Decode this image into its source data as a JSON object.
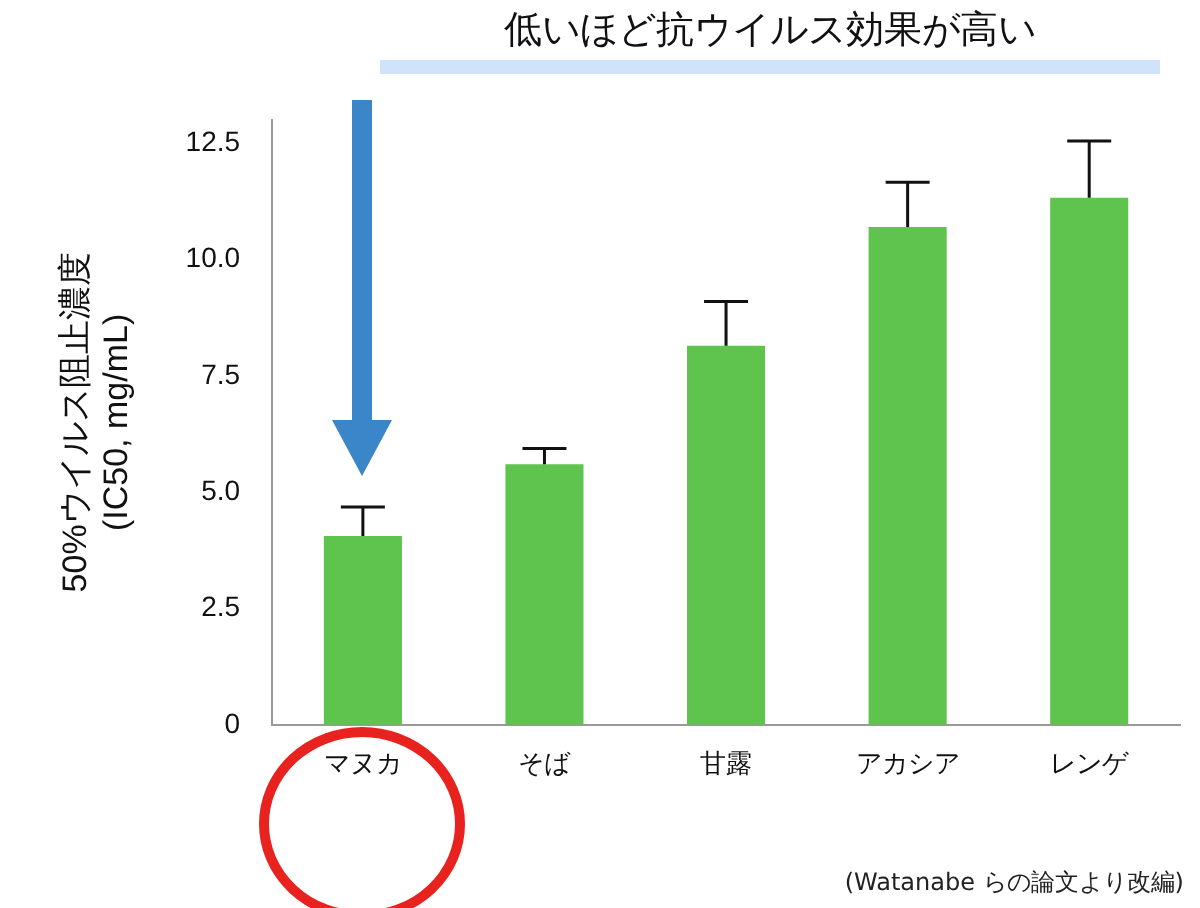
{
  "chart_data": {
    "type": "bar",
    "title": "低いほど抗ウイルス効果が高い",
    "ylabel": "50%ウイルス阻止濃度\n(IC50, mg/mL)",
    "categories": [
      "マヌカ",
      "そば",
      "甘露",
      "アカシア",
      "レンゲ"
    ],
    "values": [
      4.06,
      5.6,
      8.15,
      10.7,
      11.33
    ],
    "color": "#5ec44e",
    "errors": [
      [
        4.06,
        4.68
      ],
      [
        5.6,
        5.94
      ],
      [
        8.15,
        9.1
      ],
      [
        10.7,
        11.66
      ],
      [
        11.33,
        12.55
      ]
    ],
    "ylim": [
      0,
      13
    ],
    "yticks": [
      0,
      {
        "value": 2.5,
        "label": "2.5"
      },
      {
        "value": 5,
        "label": "5.0"
      },
      {
        "value": 7.5,
        "label": "7.5"
      },
      {
        "value": 10,
        "label": "10.0"
      },
      {
        "value": 12.5,
        "label": "12.5"
      }
    ],
    "grid": false,
    "legend": false,
    "annotations": [
      "(Watanabe らの論文より改編)"
    ]
  }
}
